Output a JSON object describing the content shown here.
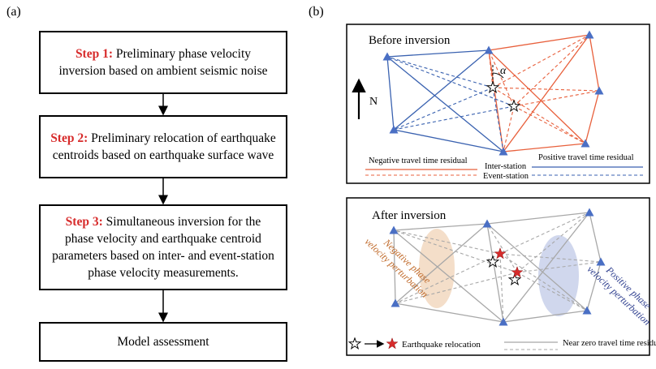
{
  "panel_a": {
    "label": "(a)",
    "steps": [
      {
        "tag": "Step 1:",
        "line1": "Preliminary phase velocity",
        "line2": "inversion based on ambient seismic noise"
      },
      {
        "tag": "Step 2:",
        "line1": "Preliminary relocation of earthquake",
        "line2": "centroids based on earthquake surface wave"
      },
      {
        "tag": "Step 3:",
        "line1": "Simultaneous inversion for the",
        "line2": "phase velocity and earthquake centroid",
        "line3": "parameters based on inter- and event-station",
        "line4": "phase velocity measurements."
      }
    ],
    "final": "Model assessment"
  },
  "panel_b": {
    "label": "(b)",
    "before": {
      "title": "Before inversion",
      "north": "N",
      "alpha": "α",
      "neg_residual": "Negative travel time residual",
      "pos_residual": "Positive travel time residual",
      "inter_station": "Inter-station",
      "event_station": "Event-station"
    },
    "after": {
      "title": "After inversion",
      "neg_perturb_1": "Negative phase",
      "neg_perturb_2": "velocity perturbation",
      "pos_perturb_1": "Positive phase",
      "pos_perturb_2": "velocity perturbation",
      "relocation": "Earthquake relocation",
      "near_zero": "Near zero travel time residual"
    }
  },
  "colors": {
    "red": "#e8603c",
    "blue": "#3a62b0",
    "gray": "#a8a8a8",
    "station": "#4a6fc4",
    "step": "#d72b2b"
  }
}
